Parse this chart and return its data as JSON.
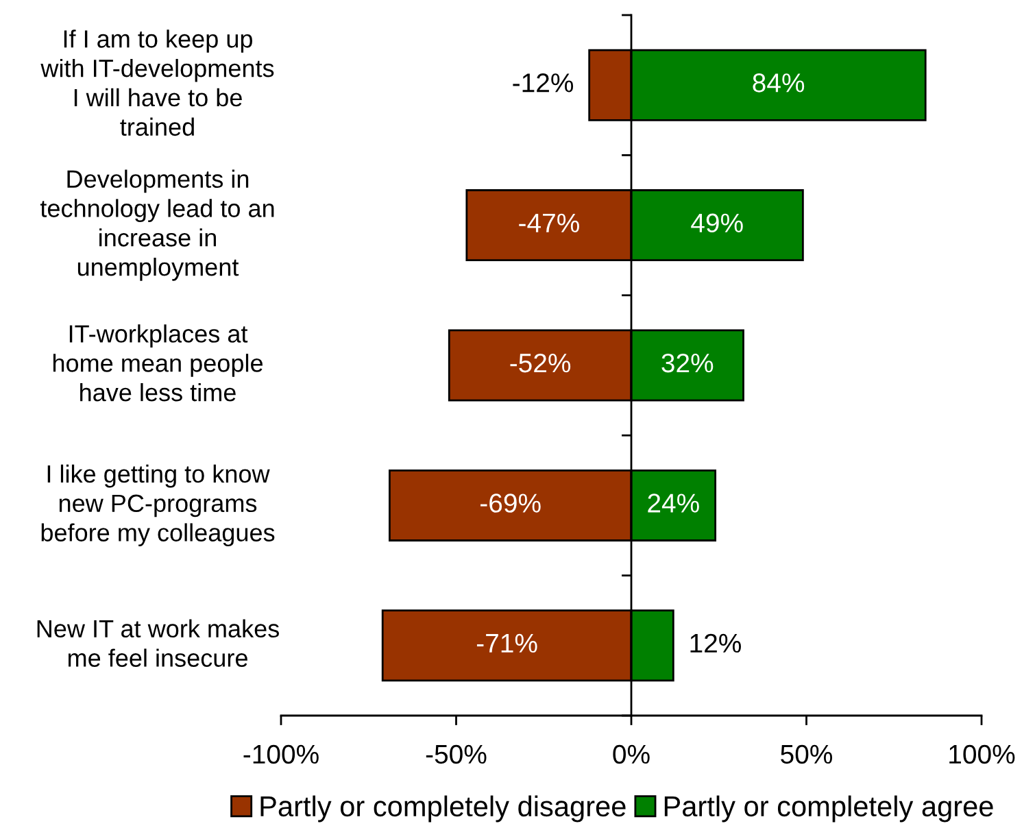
{
  "chart_data": {
    "type": "bar",
    "orientation": "horizontal",
    "stacked": true,
    "categories": [
      "If I am to keep up\nwith IT-developments\nI will have to be\ntrained",
      "Developments in\ntechnology lead to an\nincrease in\nunemployment",
      "IT-workplaces at\nhome mean people\nhave less time",
      "I like getting to know\nnew PC-programs\nbefore my colleagues",
      "New IT at work makes\nme feel insecure"
    ],
    "series": [
      {
        "name": "Partly or completely disagree",
        "color": "#993300",
        "values": [
          -12,
          -47,
          -52,
          -69,
          -71
        ],
        "value_labels": [
          "-12%",
          "-47%",
          "-52%",
          "-69%",
          "-71%"
        ]
      },
      {
        "name": "Partly or completely agree",
        "color": "#008000",
        "values": [
          84,
          49,
          32,
          24,
          12
        ],
        "value_labels": [
          "84%",
          "49%",
          "32%",
          "24%",
          "12%"
        ]
      }
    ],
    "xlim": [
      -100,
      100
    ],
    "xticks": [
      {
        "value": -100,
        "label": "-100%"
      },
      {
        "value": -50,
        "label": "-50%"
      },
      {
        "value": 0,
        "label": "0%"
      },
      {
        "value": 50,
        "label": "50%"
      },
      {
        "value": 100,
        "label": "100%"
      }
    ],
    "legend": "bottom"
  }
}
